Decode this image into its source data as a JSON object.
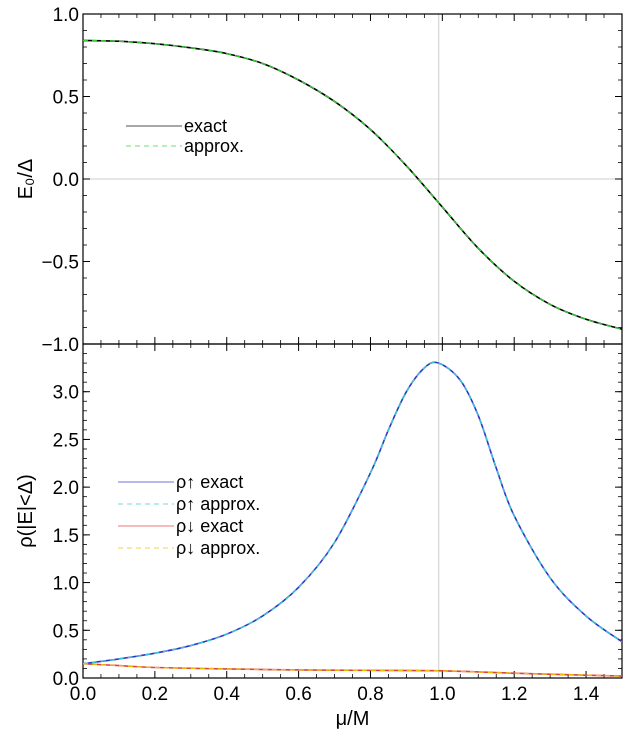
{
  "chart_data": [
    {
      "type": "line",
      "panel": "top",
      "ylabel": "E₀/Δ",
      "xlim": [
        0,
        1.5
      ],
      "ylim": [
        -1.0,
        1.0
      ],
      "yticks": [
        {
          "value": 1.0,
          "label": "1.0"
        },
        {
          "value": 0.5,
          "label": "0.5"
        },
        {
          "value": 0.0,
          "label": "0.0"
        },
        {
          "value": -0.5,
          "label": "−0.5"
        },
        {
          "value": -1.0,
          "label": "−1.0"
        }
      ],
      "reference_lines": {
        "x": 0.99,
        "y": 0.0
      },
      "legend": {
        "position": "left"
      },
      "series": [
        {
          "name": "exact",
          "color": "#000000",
          "style": "solid",
          "x": [
            0,
            0.1,
            0.2,
            0.3,
            0.4,
            0.5,
            0.6,
            0.7,
            0.8,
            0.9,
            1.0,
            1.1,
            1.2,
            1.3,
            1.4,
            1.5
          ],
          "y": [
            0.84,
            0.835,
            0.82,
            0.795,
            0.76,
            0.7,
            0.6,
            0.47,
            0.3,
            0.08,
            -0.17,
            -0.42,
            -0.62,
            -0.76,
            -0.85,
            -0.91
          ]
        },
        {
          "name": "approx.",
          "color": "#33cc33",
          "style": "dashed",
          "x": [
            0,
            0.1,
            0.2,
            0.3,
            0.4,
            0.5,
            0.6,
            0.7,
            0.8,
            0.9,
            1.0,
            1.1,
            1.2,
            1.3,
            1.4,
            1.5
          ],
          "y": [
            0.84,
            0.835,
            0.82,
            0.795,
            0.76,
            0.7,
            0.6,
            0.47,
            0.3,
            0.08,
            -0.17,
            -0.42,
            -0.62,
            -0.76,
            -0.85,
            -0.91
          ]
        }
      ]
    },
    {
      "type": "line",
      "panel": "bottom",
      "xlabel": "μ/M",
      "ylabel": "ρ(|E|<Δ)",
      "xlim": [
        0,
        1.5
      ],
      "ylim": [
        0,
        3.5
      ],
      "xticks": [
        {
          "value": 0.0,
          "label": "0.0"
        },
        {
          "value": 0.2,
          "label": "0.2"
        },
        {
          "value": 0.4,
          "label": "0.4"
        },
        {
          "value": 0.6,
          "label": "0.6"
        },
        {
          "value": 0.8,
          "label": "0.8"
        },
        {
          "value": 1.0,
          "label": "1.0"
        },
        {
          "value": 1.2,
          "label": "1.2"
        },
        {
          "value": 1.4,
          "label": "1.4"
        }
      ],
      "yticks": [
        {
          "value": 0.0,
          "label": "0.0"
        },
        {
          "value": 0.5,
          "label": "0.5"
        },
        {
          "value": 1.0,
          "label": "1.0"
        },
        {
          "value": 1.5,
          "label": "1.5"
        },
        {
          "value": 2.0,
          "label": "2.0"
        },
        {
          "value": 2.5,
          "label": "2.5"
        },
        {
          "value": 3.0,
          "label": "3.0"
        }
      ],
      "reference_lines": {
        "x": 0.99
      },
      "legend": {
        "position": "left"
      },
      "series": [
        {
          "name": "ρ↑ exact",
          "color": "#3333cc",
          "style": "solid",
          "x": [
            0,
            0.1,
            0.2,
            0.3,
            0.4,
            0.5,
            0.6,
            0.7,
            0.8,
            0.85,
            0.9,
            0.95,
            0.99,
            1.05,
            1.1,
            1.15,
            1.2,
            1.3,
            1.4,
            1.5
          ],
          "y": [
            0.15,
            0.2,
            0.26,
            0.34,
            0.46,
            0.65,
            0.95,
            1.42,
            2.15,
            2.6,
            3.0,
            3.25,
            3.3,
            3.12,
            2.75,
            2.2,
            1.7,
            1.05,
            0.65,
            0.38
          ]
        },
        {
          "name": "ρ↑ approx.",
          "color": "#33cccc",
          "style": "dashed",
          "x": [
            0,
            0.1,
            0.2,
            0.3,
            0.4,
            0.5,
            0.6,
            0.7,
            0.8,
            0.85,
            0.9,
            0.95,
            0.99,
            1.05,
            1.1,
            1.15,
            1.2,
            1.3,
            1.4,
            1.5
          ],
          "y": [
            0.15,
            0.2,
            0.26,
            0.34,
            0.46,
            0.65,
            0.95,
            1.42,
            2.15,
            2.6,
            3.0,
            3.25,
            3.3,
            3.12,
            2.75,
            2.2,
            1.7,
            1.05,
            0.65,
            0.38
          ]
        },
        {
          "name": "ρ↓ exact",
          "color": "#e04040",
          "style": "solid",
          "x": [
            0,
            0.1,
            0.2,
            0.4,
            0.6,
            0.8,
            1.0,
            1.2,
            1.4,
            1.5
          ],
          "y": [
            0.15,
            0.13,
            0.11,
            0.095,
            0.085,
            0.08,
            0.075,
            0.05,
            0.03,
            0.02
          ]
        },
        {
          "name": "ρ↓ approx.",
          "color": "#e8c000",
          "style": "dashed",
          "x": [
            0,
            0.1,
            0.2,
            0.4,
            0.6,
            0.8,
            1.0,
            1.2,
            1.4,
            1.5
          ],
          "y": [
            0.15,
            0.13,
            0.11,
            0.095,
            0.085,
            0.08,
            0.075,
            0.05,
            0.03,
            0.02
          ]
        }
      ]
    }
  ]
}
